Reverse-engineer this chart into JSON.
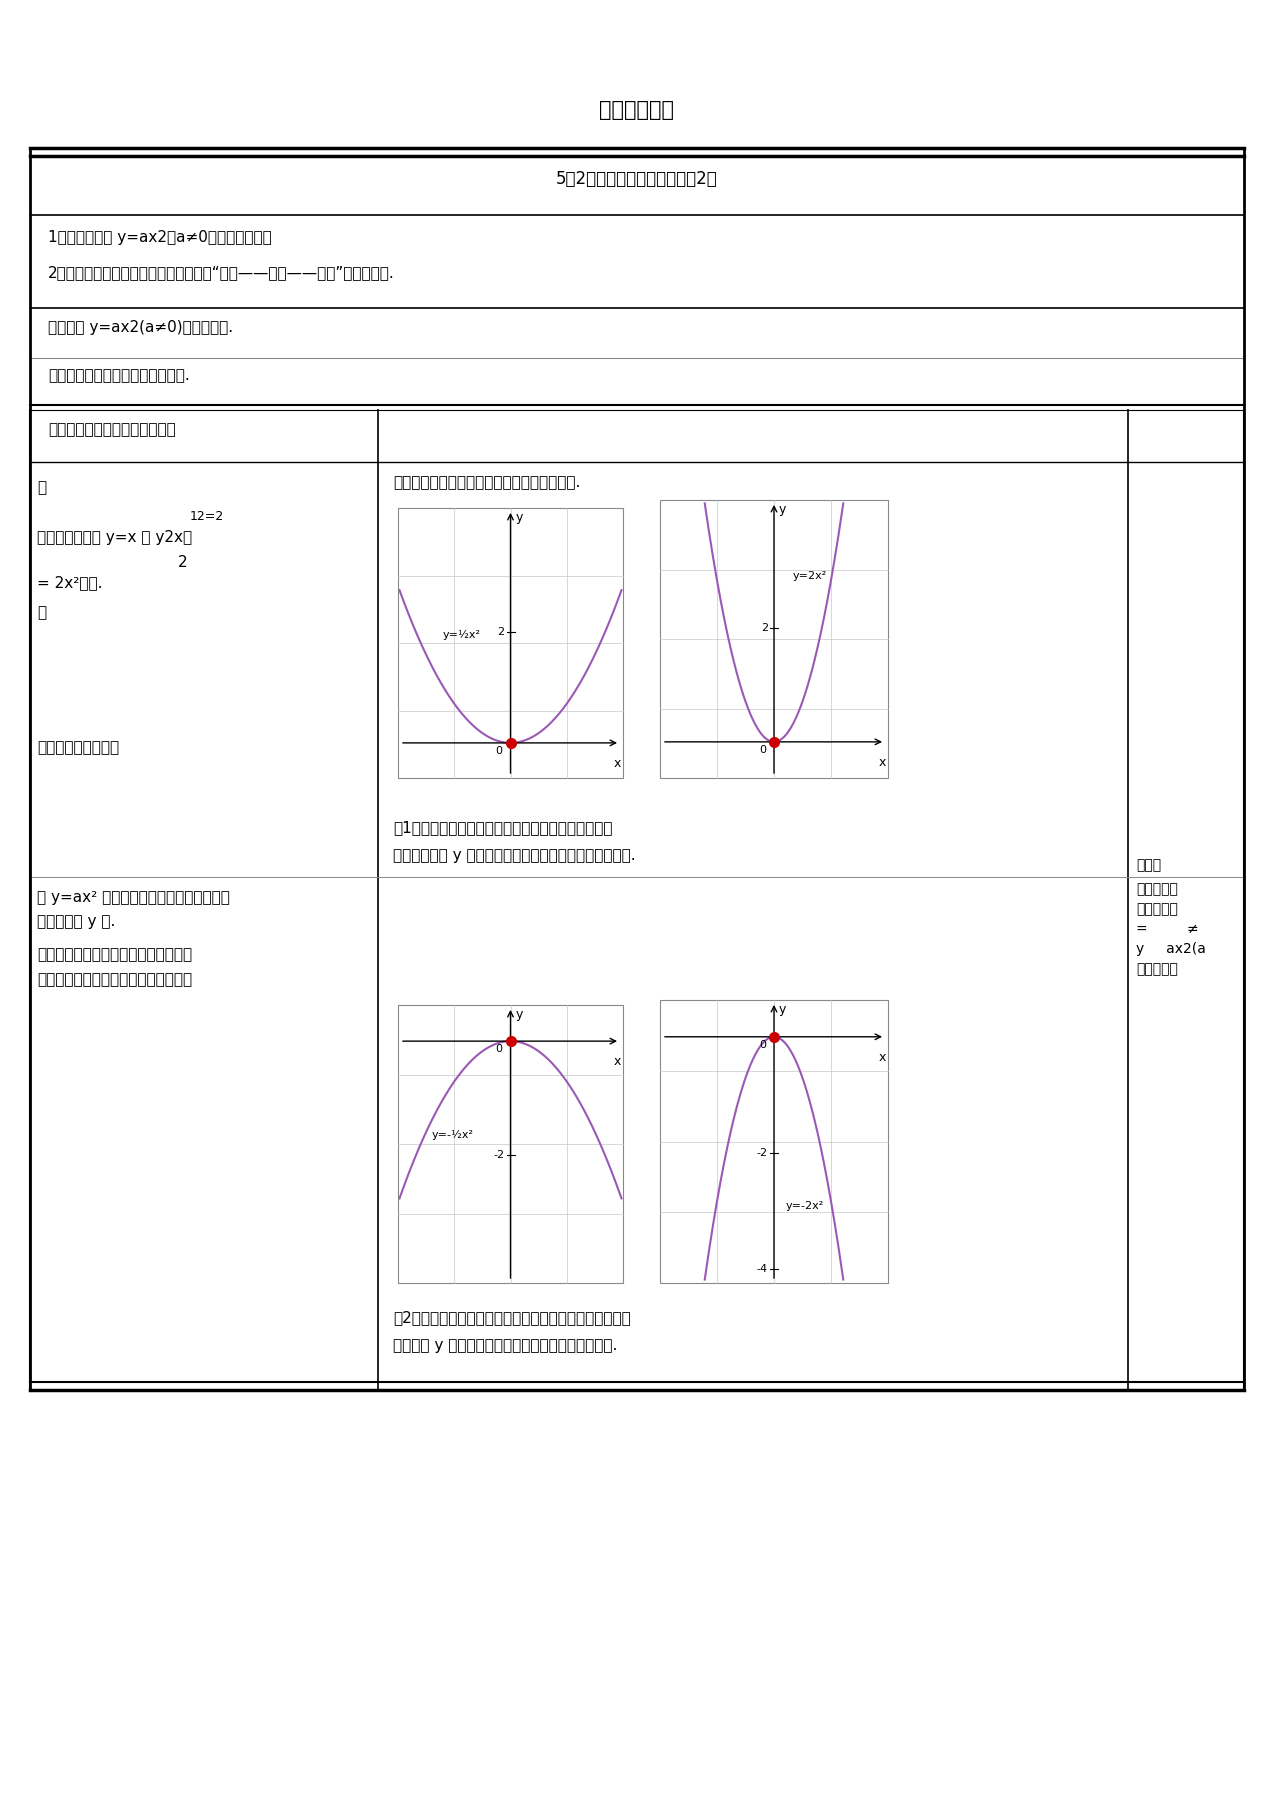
{
  "title": "数学授课方案",
  "section_title": "5．2二次函数的图像和性质（2）",
  "bg_color": "#ffffff",
  "parabola_color": "#9b59b6",
  "dot_color": "#cc0000",
  "obj1": "1．能归纳总结 y=ax2（a≠0）的图像性质；",
  "obj2": "2．领悟用类比方法研究数学问题，实现“研究——经验——运用”的思想过程.",
  "key_point": "归纳总结 y=ax2(a≠0)的图像性质.",
  "difficulty": "获得利用图像研究函数性质的经验.",
  "col1_header": "授课过程（教师）学生活动设计",
  "student_task": "学生画图像，并思虑这四个图像各有什么特色.",
  "desc1_line1": "（1）这两个函数的图像都是抛物线，抛物线的张口向",
  "desc1_line2": "上，对称轴为 y 轴，极点在原点，极点是抛物线的最低点.",
  "desc2_line1": "（2）这两个函数的图像都是抛物线，抛物线的张口向下，",
  "desc2_line2": "对称轴为 y 轴，极点在原点，极点是抛物线的最高点.",
  "col1_dot1": "．",
  "col1_note": "12=2",
  "col1_biaoji": "标系中画出函数 y=x 和 y2x、",
  "col1_2": "2",
  "col1_eq": "= 2x²图像.",
  "col1_dot2": "．",
  "col1_question": "图像各有什么特色？",
  "col1_para5a": "数 y=ax² 的图像是一条抛物线，抛物线的",
  "col1_para5b": "，对称轴为 y 轴.",
  "col1_para6": "时，抛物线的张口向上，极点是抛物线",
  "col1_para7": "时，抛物线的张口向下，极点是抛物线",
  "col3_t1": "经过画",
  "col3_t2": "二次函数图",
  "col3_t3": "程，为下面",
  "col3_t4": "=         ≠",
  "col3_t5": "y     ax2(a",
  "col3_t6": "质打下基础"
}
